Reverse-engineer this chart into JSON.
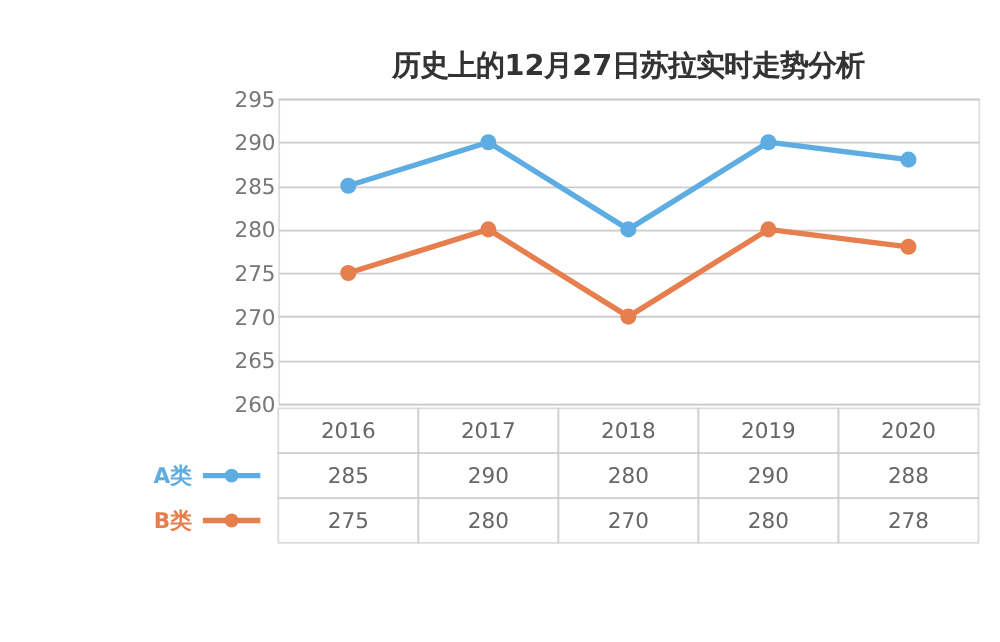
{
  "chart_data": {
    "type": "line",
    "title": "历史上的12月27日苏拉实时走势分析",
    "categories": [
      "2016",
      "2017",
      "2018",
      "2019",
      "2020"
    ],
    "series": [
      {
        "name": "A类",
        "color": "#5dade2",
        "values": [
          285,
          290,
          280,
          290,
          288
        ]
      },
      {
        "name": "B类",
        "color": "#e67e4d",
        "values": [
          275,
          280,
          270,
          280,
          278
        ]
      }
    ],
    "ylim": [
      260,
      295
    ],
    "yticks": [
      260,
      265,
      270,
      275,
      280,
      285,
      290,
      295
    ],
    "grid": "y",
    "marker": "circle",
    "line_style": "solid",
    "data_labels": true,
    "legend": "bottom left"
  }
}
